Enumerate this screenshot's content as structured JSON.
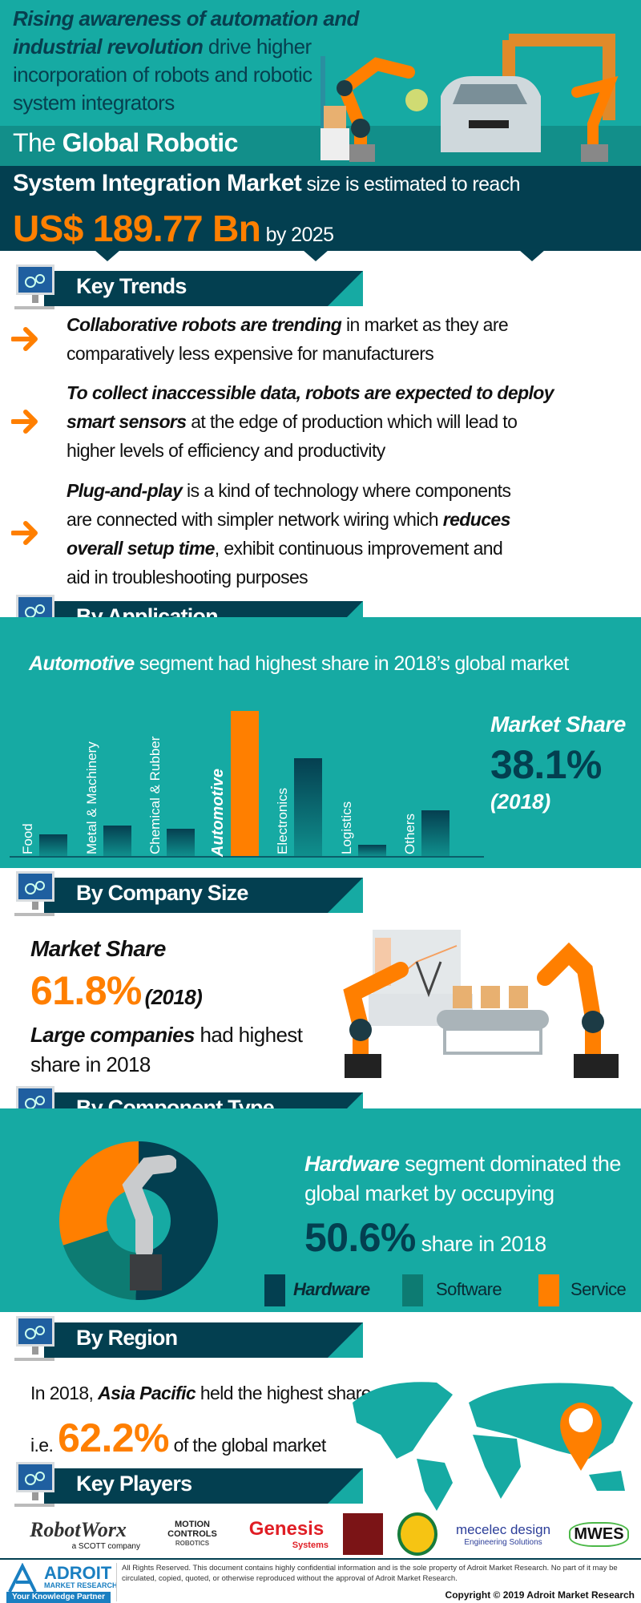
{
  "header": {
    "intro_bold": "Rising awareness of automation and industrial revolution",
    "intro_line1": "Rising awareness of automation and",
    "intro_line2_bold": "industrial revolution",
    "intro_line2_rest": " drive higher",
    "intro_line3": "incorporation of robots and robotic",
    "intro_line4": "system integrators",
    "title_the": "The ",
    "title_bold1": "Global Robotic",
    "title_bold2": "System Integration Market",
    "title_rest": " size is estimated to reach",
    "value": "US$ 189.77 Bn",
    "value_suffix": " by 2025"
  },
  "sections": {
    "key_trends": "Key Trends",
    "by_application": "By Application",
    "by_company_size": "By Company Size",
    "by_component_type": "By Component Type",
    "by_region": "By Region",
    "key_players": "Key Players"
  },
  "trends": [
    {
      "l1b": "Collaborative robots are trending",
      "l1": " in market as they are",
      "l2": "comparatively less expensive for manufacturers"
    },
    {
      "l1b": "To collect inaccessible data, robots are expected to deploy",
      "l2b": "smart sensors",
      "l2": " at the edge of production which will lead to",
      "l3": "higher levels of efficiency and productivity"
    },
    {
      "l1b": "Plug-and-play",
      "l1": " is a kind of technology where components",
      "l2": "are connected with simpler network wiring which ",
      "l2b": "reduces",
      "l3b": "overall setup time",
      "l3": ", exhibit continuous improvement and",
      "l4": "aid in troubleshooting purposes"
    }
  ],
  "application": {
    "headline_bold": "Automotive",
    "headline_rest": " segment had highest share in 2018’s global market",
    "share_label": "Market Share",
    "share_value": "38.1%",
    "share_year": "(2018)"
  },
  "chart_data": {
    "type": "bar",
    "categories": [
      "Food",
      "Metal & Machinery",
      "Chemical & Rubber",
      "Automotive",
      "Electronics",
      "Logistics",
      "Others"
    ],
    "values": [
      5.7,
      8.0,
      7.2,
      38.1,
      25.6,
      3.0,
      11.9
    ],
    "highlight": "Automotive",
    "colors": {
      "default": "#053f50",
      "highlight": "#ff7f00"
    },
    "ylim": [
      0,
      38.1
    ],
    "grid": false
  },
  "company_size": {
    "share_label": "Market Share",
    "share_value": "61.8%",
    "share_year": "(2018)",
    "text_bold": "Large companies",
    "text_rest": " had highest",
    "text_line2": "share in 2018"
  },
  "component": {
    "text_bold": "Hardware",
    "text_rest": " segment dominated the",
    "text_line2": "global market by occupying",
    "share_value": "50.6%",
    "share_rest": " share in 2018",
    "donut": [
      {
        "name": "Hardware",
        "value": 50.6,
        "color": "#033f50"
      },
      {
        "name": "Software",
        "value": 19.4,
        "color": "#0d7b72"
      },
      {
        "name": "Service",
        "value": 30.0,
        "color": "#ff7f00"
      }
    ]
  },
  "region": {
    "line1_pre": "In 2018, ",
    "line1_bold": "Asia Pacific",
    "line1_rest": " held the highest share",
    "line2_pre": "i.e. ",
    "share_value": "62.2%",
    "line2_rest": " of the global market"
  },
  "players": {
    "robotworx": "RobotWorx",
    "robotworx_sub": "a SCOTT company",
    "motion1": "MOTION",
    "motion2": "CONTROLS",
    "motion3": "ROBOTICS",
    "genesis": "Genesis",
    "genesis_sub": "Systems",
    "mecelec": "mecelec design",
    "mecelec_sub": "Engineering Solutions",
    "mwes": "MWES"
  },
  "footer": {
    "brand": "ADROIT",
    "brand_sub": "MARKET RESEARCH",
    "tagline": "Your Knowledge Partner",
    "disclaimer": "All Rights Reserved. This document contains highly confidential information and is the sole property of Adroit Market Research. No part of it may be circulated, copied, quoted, or otherwise reproduced without the approval of Adroit Market Research.",
    "copyright": "Copyright © 2019 Adroit Market Research"
  },
  "colors": {
    "teal": "#16aaa3",
    "navy": "#033f50",
    "orange": "#ff7f00"
  }
}
